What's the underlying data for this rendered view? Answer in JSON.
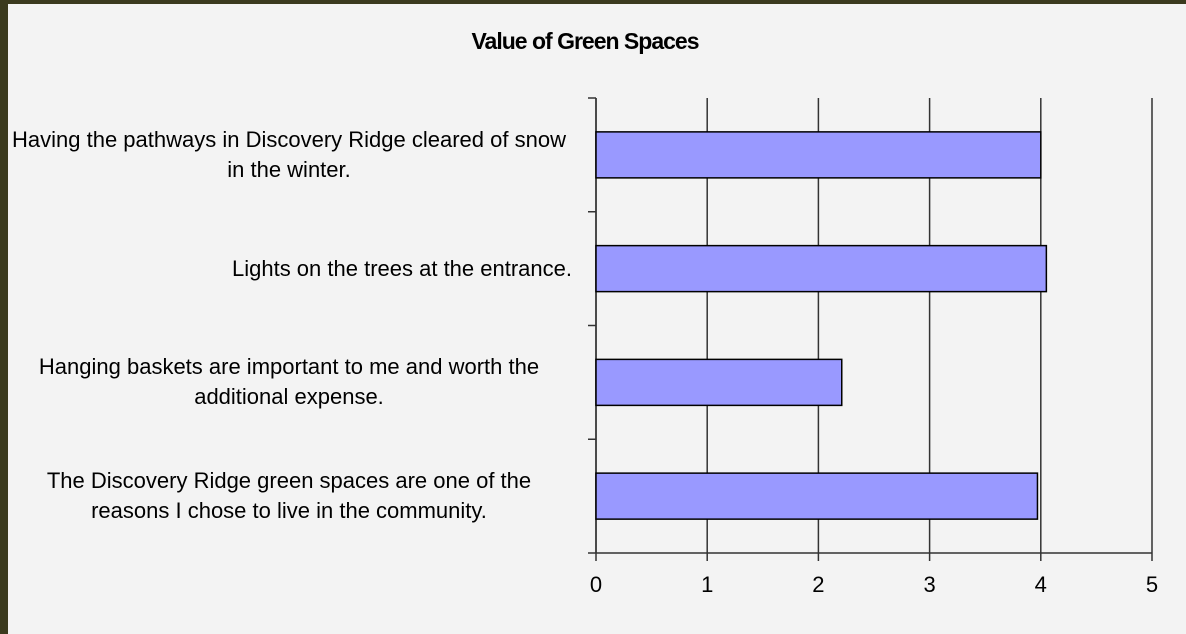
{
  "chart_data": {
    "type": "bar",
    "orientation": "horizontal",
    "title": "Value of Green Spaces",
    "categories": [
      "Having the pathways in Discovery Ridge cleared of snow in the winter.",
      "Lights on the trees at the entrance.",
      "Hanging baskets are important to me and worth the additional expense.",
      "The Discovery Ridge green spaces are one of the reasons I chose to live in the community."
    ],
    "values": [
      4.0,
      4.05,
      2.21,
      3.97
    ],
    "color": "#9999ff",
    "xlim": [
      0,
      5
    ],
    "xticks": [
      0,
      1,
      2,
      3,
      4,
      5
    ],
    "grid": true
  }
}
